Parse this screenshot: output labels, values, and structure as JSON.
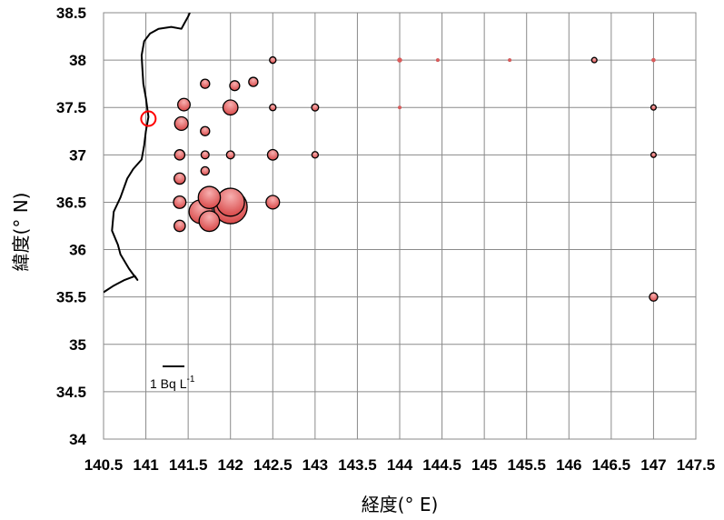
{
  "chart_data": {
    "type": "scatter",
    "xlabel": "経度(° E)",
    "ylabel": "緯度(° N)",
    "xlim": [
      140.5,
      147.5
    ],
    "ylim": [
      34,
      38.5
    ],
    "x_ticks": [
      "140.5",
      "141",
      "141.5",
      "142",
      "142.5",
      "143",
      "143.5",
      "144",
      "144.5",
      "145",
      "145.5",
      "146",
      "146.5",
      "147",
      "147.5"
    ],
    "y_ticks": [
      "34",
      "34.5",
      "35",
      "35.5",
      "36",
      "36.5",
      "37",
      "37.5",
      "38",
      "38.5"
    ],
    "grid": true,
    "marker_color": "#e05a5a",
    "plant_color": "#ff0000",
    "scale_label": "1 Bq L",
    "scale_label_sup": "-1",
    "plant_marker": {
      "x": 141.03,
      "y": 37.42
    },
    "points": [
      {
        "x": 141.7,
        "y": 37.75,
        "size": 0.6
      },
      {
        "x": 142.05,
        "y": 37.73,
        "size": 0.7
      },
      {
        "x": 142.27,
        "y": 37.77,
        "size": 0.6
      },
      {
        "x": 142.5,
        "y": 38.0,
        "size": 0.3
      },
      {
        "x": 141.45,
        "y": 37.53,
        "size": 1.1
      },
      {
        "x": 142.0,
        "y": 37.5,
        "size": 1.6
      },
      {
        "x": 142.5,
        "y": 37.5,
        "size": 0.3
      },
      {
        "x": 143.0,
        "y": 37.5,
        "size": 0.35
      },
      {
        "x": 141.42,
        "y": 37.33,
        "size": 1.3
      },
      {
        "x": 141.7,
        "y": 37.25,
        "size": 0.6
      },
      {
        "x": 141.4,
        "y": 37.0,
        "size": 0.75
      },
      {
        "x": 141.7,
        "y": 37.0,
        "size": 0.45
      },
      {
        "x": 142.0,
        "y": 37.0,
        "size": 0.45
      },
      {
        "x": 142.5,
        "y": 37.0,
        "size": 0.8
      },
      {
        "x": 143.0,
        "y": 37.0,
        "size": 0.3
      },
      {
        "x": 141.7,
        "y": 36.83,
        "size": 0.5
      },
      {
        "x": 141.4,
        "y": 36.75,
        "size": 0.9
      },
      {
        "x": 141.4,
        "y": 36.5,
        "size": 1.1
      },
      {
        "x": 142.5,
        "y": 36.5,
        "size": 1.3
      },
      {
        "x": 141.4,
        "y": 36.25,
        "size": 0.9
      },
      {
        "x": 142.0,
        "y": 36.45,
        "size": 8.0
      },
      {
        "x": 142.0,
        "y": 36.5,
        "size": 5.6
      },
      {
        "x": 141.75,
        "y": 36.3,
        "size": 3.0
      },
      {
        "x": 141.75,
        "y": 36.55,
        "size": 3.5
      },
      {
        "x": 141.65,
        "y": 36.4,
        "size": 4.0
      },
      {
        "x": 144.0,
        "y": 38.0,
        "size": 0.15
      },
      {
        "x": 146.3,
        "y": 38.0,
        "size": 0.2
      },
      {
        "x": 147.0,
        "y": 38.0,
        "size": 0.1
      },
      {
        "x": 147.0,
        "y": 37.5,
        "size": 0.2
      },
      {
        "x": 147.0,
        "y": 37.0,
        "size": 0.2
      },
      {
        "x": 147.0,
        "y": 35.5,
        "size": 0.5
      },
      {
        "x": 144.45,
        "y": 38.0,
        "size": 0.08
      },
      {
        "x": 145.3,
        "y": 38.0,
        "size": 0.08
      },
      {
        "x": 144.0,
        "y": 37.5,
        "size": 0.08
      }
    ],
    "coastline": [
      [
        140.5,
        35.55
      ],
      [
        140.62,
        35.62
      ],
      [
        140.75,
        35.68
      ],
      [
        140.87,
        35.72
      ],
      [
        140.9,
        35.68
      ],
      [
        140.84,
        35.75
      ],
      [
        140.8,
        35.8
      ],
      [
        140.7,
        35.95
      ],
      [
        140.67,
        36.05
      ],
      [
        140.6,
        36.2
      ],
      [
        140.62,
        36.4
      ],
      [
        140.7,
        36.55
      ],
      [
        140.78,
        36.75
      ],
      [
        140.85,
        36.85
      ],
      [
        140.95,
        36.95
      ],
      [
        140.98,
        37.1
      ],
      [
        141.0,
        37.25
      ],
      [
        141.03,
        37.4
      ],
      [
        141.0,
        37.6
      ],
      [
        140.97,
        37.75
      ],
      [
        140.96,
        37.9
      ],
      [
        140.95,
        38.05
      ],
      [
        140.98,
        38.2
      ],
      [
        141.05,
        38.28
      ],
      [
        141.15,
        38.33
      ],
      [
        141.3,
        38.35
      ],
      [
        141.42,
        38.33
      ],
      [
        141.45,
        38.38
      ],
      [
        141.5,
        38.46
      ],
      [
        141.52,
        38.5
      ]
    ]
  }
}
